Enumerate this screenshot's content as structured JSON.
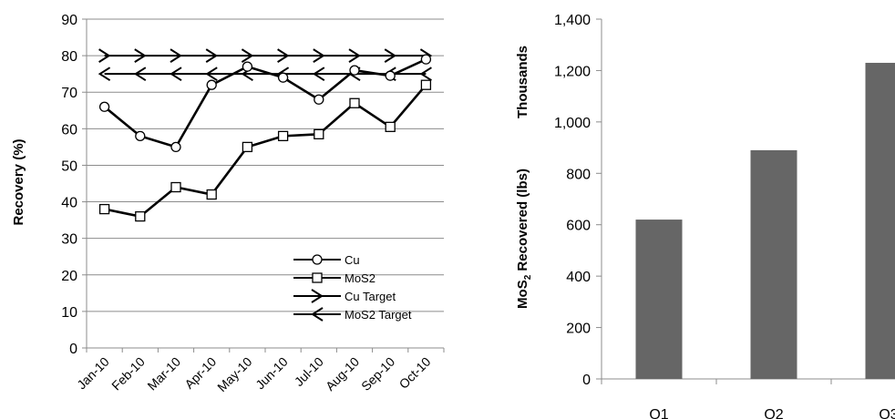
{
  "chart_data": [
    {
      "type": "line",
      "title": "",
      "xlabel": "",
      "ylabel": "Recovery (%)",
      "ylim": [
        0,
        90
      ],
      "yticks": [
        0,
        10,
        20,
        30,
        40,
        50,
        60,
        70,
        80,
        90
      ],
      "grid": true,
      "legend_position": "bottom-right",
      "categories": [
        "Jan-10",
        "Feb-10",
        "Mar-10",
        "Apr-10",
        "May-10",
        "Jun-10",
        "Jul-10",
        "Aug-10",
        "Sep-10",
        "Oct-10"
      ],
      "series": [
        {
          "name": "Cu",
          "values": [
            66,
            58,
            55,
            72,
            77,
            74,
            68,
            76,
            74.5,
            79
          ],
          "marker": "circle"
        },
        {
          "name": "MoS2",
          "values": [
            38,
            36,
            44,
            42,
            55,
            58,
            58.5,
            67,
            60.5,
            72
          ],
          "marker": "square"
        },
        {
          "name": "Cu Target",
          "values": [
            80,
            80,
            80,
            80,
            80,
            80,
            80,
            80,
            80,
            80
          ],
          "marker": "arrow-right"
        },
        {
          "name": "MoS2 Target",
          "values": [
            75,
            75,
            75,
            75,
            75,
            75,
            75,
            75,
            75,
            75
          ],
          "marker": "arrow-left"
        }
      ]
    },
    {
      "type": "bar",
      "title": "",
      "xlabel": "",
      "ylabel_main": "MoS",
      "ylabel_sub": "2",
      "ylabel_rest": " Recovered (lbs)",
      "units_label": "Thousands",
      "ylim": [
        0,
        1400
      ],
      "yticks": [
        "0",
        "200",
        "400",
        "600",
        "800",
        "1,000",
        "1,200",
        "1,400"
      ],
      "grid": false,
      "categories": [
        "Q1",
        "Q2",
        "Q3"
      ],
      "values": [
        620,
        890,
        1230
      ]
    }
  ],
  "colors": {
    "line": "#000000",
    "grid": "#8c8c8c",
    "bar": "#666666",
    "marker_fill": "#ffffff"
  }
}
